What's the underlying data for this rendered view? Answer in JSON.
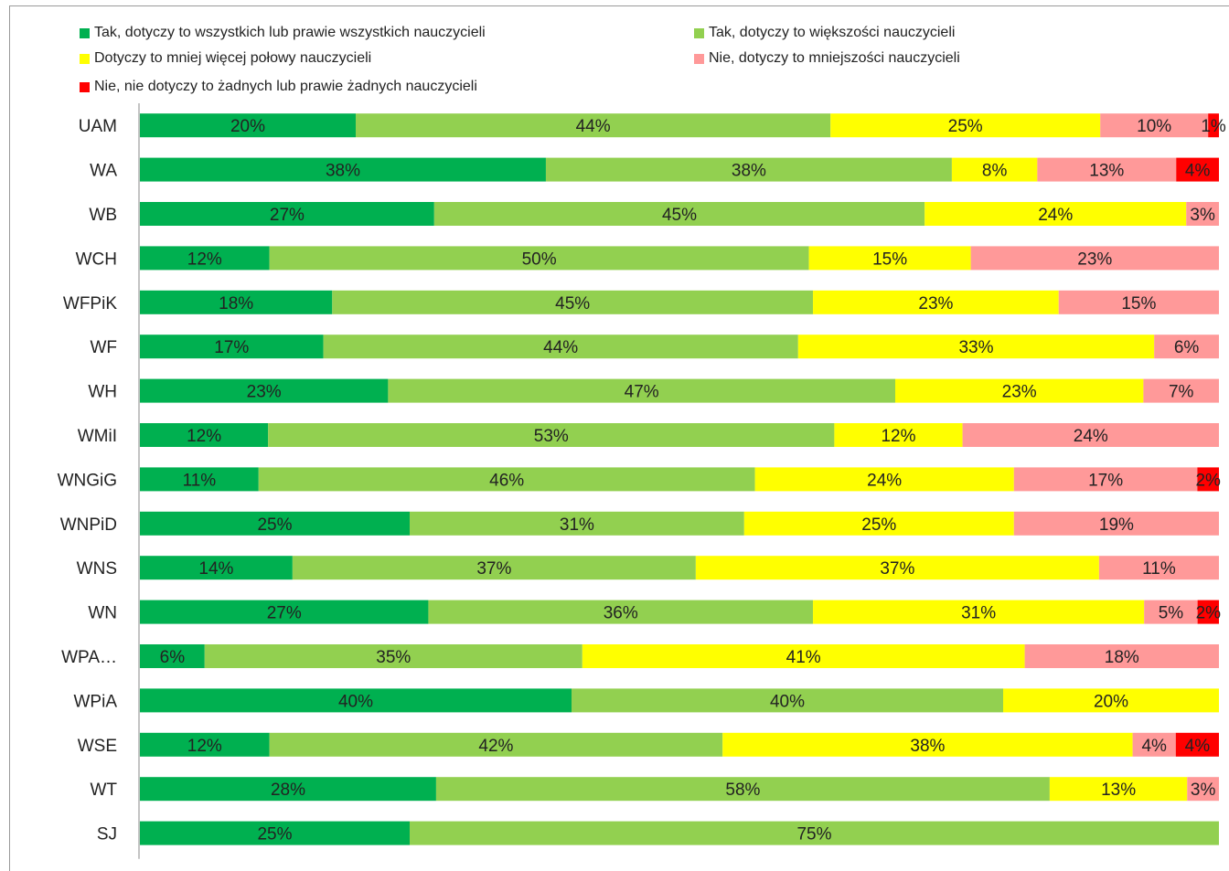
{
  "colors": [
    "#00b050",
    "#92d050",
    "#ffff00",
    "#ff9999",
    "#ff0000"
  ],
  "legend": [
    {
      "label": "Tak, dotyczy to wszystkich lub prawie wszystkich nauczycieli",
      "color": "#00b050"
    },
    {
      "label": "Tak, dotyczy to większości nauczycieli",
      "color": "#92d050"
    },
    {
      "label": "Dotyczy to mniej więcej połowy nauczycieli",
      "color": "#ffff00"
    },
    {
      "label": "Nie, dotyczy to mniejszości nauczycieli",
      "color": "#ff9999"
    },
    {
      "label": "Nie, nie dotyczy to żadnych lub prawie żadnych nauczycieli",
      "color": "#ff0000"
    }
  ],
  "chart_data": {
    "type": "bar",
    "orientation": "horizontal",
    "stacked": "percent",
    "legend_position": "top",
    "grid": false,
    "categories": [
      "UAM",
      "WA",
      "WB",
      "WCH",
      "WFPiK",
      "WF",
      "WH",
      "WMiI",
      "WNGiG",
      "WNPiD",
      "WNS",
      "WN",
      "WPA…",
      "WPiA",
      "WSE",
      "WT",
      "SJ"
    ],
    "series": [
      {
        "name": "Tak, dotyczy to wszystkich lub prawie wszystkich nauczycieli",
        "values": [
          20,
          38,
          27,
          12,
          18,
          17,
          23,
          12,
          11,
          25,
          14,
          27,
          6,
          40,
          12,
          28,
          25
        ],
        "labels": [
          "20%",
          "38%",
          "27%",
          "12%",
          "18%",
          "17%",
          "23%",
          "12%",
          "11%",
          "25%",
          "14%",
          "27%",
          "6%",
          "40%",
          "12%",
          "28%",
          "25%"
        ]
      },
      {
        "name": "Tak, dotyczy to większości nauczycieli",
        "values": [
          44,
          38,
          45,
          50,
          45,
          44,
          47,
          53,
          46,
          31,
          37,
          36,
          35,
          40,
          42,
          58,
          75
        ],
        "labels": [
          "44%",
          "38%",
          "45%",
          "50%",
          "45%",
          "44%",
          "47%",
          "53%",
          "46%",
          "31%",
          "37%",
          "36%",
          "35%",
          "40%",
          "42%",
          "58%",
          "75%"
        ]
      },
      {
        "name": "Dotyczy to mniej więcej połowy nauczycieli",
        "values": [
          25,
          8,
          24,
          15,
          23,
          33,
          23,
          12,
          24,
          25,
          37,
          31,
          41,
          20,
          38,
          13,
          0
        ],
        "labels": [
          "25%",
          "8%",
          "24%",
          "15%",
          "23%",
          "33%",
          "23%",
          "12%",
          "24%",
          "25%",
          "37%",
          "31%",
          "41%",
          "20%",
          "38%",
          "13%",
          ""
        ]
      },
      {
        "name": "Nie, dotyczy to mniejszości nauczycieli",
        "values": [
          10,
          13,
          3,
          23,
          15,
          6,
          7,
          24,
          17,
          19,
          11,
          5,
          18,
          0,
          4,
          3,
          0
        ],
        "labels": [
          "10%",
          "13%",
          "3%",
          "23%",
          "15%",
          "6%",
          "7%",
          "24%",
          "17%",
          "19%",
          "11%",
          "5%",
          "18%",
          "",
          "4%",
          "3%",
          ""
        ]
      },
      {
        "name": "Nie, nie dotyczy to żadnych lub prawie żadnych nauczycieli",
        "values": [
          1,
          4,
          0,
          0,
          0,
          0,
          0,
          0,
          2,
          0,
          0,
          2,
          0,
          0,
          4,
          0,
          0
        ],
        "labels": [
          "1%",
          "4%",
          "",
          "",
          "",
          "",
          "",
          "",
          "2%",
          "",
          "",
          "2%",
          "",
          "",
          "4%",
          "",
          ""
        ]
      }
    ]
  }
}
